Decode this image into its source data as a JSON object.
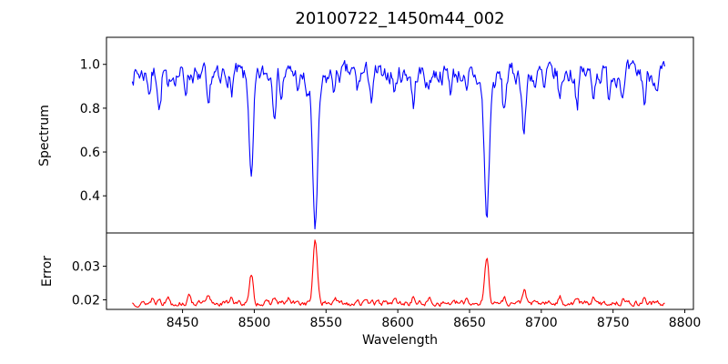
{
  "figure_title": "20100722_1450m44_002",
  "colors": {
    "spectrum_line": "#0000ff",
    "error_line": "#ff0000",
    "axis": "#000000",
    "background": "#ffffff"
  },
  "chart_data": {
    "type": "line",
    "title": "20100722_1450m44_002",
    "xlabel": "Wavelength",
    "xlim": [
      8397,
      8806
    ],
    "x_ticks": [
      {
        "value": 8450,
        "label": "8450"
      },
      {
        "value": 8500,
        "label": "8500"
      },
      {
        "value": 8550,
        "label": "8550"
      },
      {
        "value": 8600,
        "label": "8600"
      },
      {
        "value": 8650,
        "label": "8650"
      },
      {
        "value": 8700,
        "label": "8700"
      },
      {
        "value": 8750,
        "label": "8750"
      },
      {
        "value": 8800,
        "label": "8800"
      }
    ],
    "grid": false,
    "legend": false,
    "panels": [
      {
        "name": "spectrum",
        "ylabel": "Spectrum",
        "ylim": [
          0.2305,
          1.1235
        ],
        "y_ticks": [
          {
            "value": 1.0,
            "label": "1.0"
          },
          {
            "value": 0.8,
            "label": "0.8"
          },
          {
            "value": 0.6,
            "label": "0.6"
          },
          {
            "value": 0.4,
            "label": "0.4"
          }
        ],
        "series": {
          "name": "spectrum",
          "color": "#0000ff",
          "x_start": 8415,
          "x_end": 8786,
          "n_points": 520,
          "continuum": 0.958,
          "noise": {
            "seed": 7,
            "persistence": 0.55,
            "amplitude": 0.075
          },
          "absorption_lines": [
            {
              "center": 8427.0,
              "depth": 0.08,
              "sigma": 0.9
            },
            {
              "center": 8434.0,
              "depth": 0.16,
              "sigma": 1.0
            },
            {
              "center": 8440.0,
              "depth": 0.11,
              "sigma": 0.9
            },
            {
              "center": 8452.0,
              "depth": 0.07,
              "sigma": 0.9
            },
            {
              "center": 8461.0,
              "depth": 0.06,
              "sigma": 0.8
            },
            {
              "center": 8468.0,
              "depth": 0.2,
              "sigma": 1.1
            },
            {
              "center": 8476.0,
              "depth": 0.07,
              "sigma": 0.9
            },
            {
              "center": 8484.0,
              "depth": 0.09,
              "sigma": 0.9
            },
            {
              "center": 8498.0,
              "depth": 0.44,
              "sigma": 1.3
            },
            {
              "center": 8498.0,
              "depth": 0.06,
              "sigma": 3.5
            },
            {
              "center": 8514.0,
              "depth": 0.15,
              "sigma": 1.0
            },
            {
              "center": 8519.0,
              "depth": 0.1,
              "sigma": 0.9
            },
            {
              "center": 8531.0,
              "depth": 0.07,
              "sigma": 0.9
            },
            {
              "center": 8537.0,
              "depth": 0.06,
              "sigma": 0.8
            },
            {
              "center": 8542.5,
              "depth": 0.62,
              "sigma": 1.7
            },
            {
              "center": 8542.5,
              "depth": 0.08,
              "sigma": 5.5
            },
            {
              "center": 8556.0,
              "depth": 0.07,
              "sigma": 0.9
            },
            {
              "center": 8572.0,
              "depth": 0.08,
              "sigma": 0.9
            },
            {
              "center": 8582.0,
              "depth": 0.13,
              "sigma": 1.0
            },
            {
              "center": 8590.0,
              "depth": 0.06,
              "sigma": 0.8
            },
            {
              "center": 8598.0,
              "depth": 0.09,
              "sigma": 0.9
            },
            {
              "center": 8611.0,
              "depth": 0.15,
              "sigma": 1.0
            },
            {
              "center": 8621.0,
              "depth": 0.08,
              "sigma": 0.9
            },
            {
              "center": 8637.0,
              "depth": 0.07,
              "sigma": 0.9
            },
            {
              "center": 8648.0,
              "depth": 0.12,
              "sigma": 1.0
            },
            {
              "center": 8662.0,
              "depth": 0.58,
              "sigma": 1.6
            },
            {
              "center": 8662.0,
              "depth": 0.08,
              "sigma": 4.5
            },
            {
              "center": 8674.0,
              "depth": 0.17,
              "sigma": 1.1
            },
            {
              "center": 8688.0,
              "depth": 0.27,
              "sigma": 1.3
            },
            {
              "center": 8696.0,
              "depth": 0.07,
              "sigma": 0.9
            },
            {
              "center": 8702.0,
              "depth": 0.09,
              "sigma": 0.9
            },
            {
              "center": 8713.0,
              "depth": 0.12,
              "sigma": 1.0
            },
            {
              "center": 8725.0,
              "depth": 0.13,
              "sigma": 1.0
            },
            {
              "center": 8736.0,
              "depth": 0.1,
              "sigma": 0.9
            },
            {
              "center": 8747.0,
              "depth": 0.09,
              "sigma": 0.9
            },
            {
              "center": 8757.0,
              "depth": 0.12,
              "sigma": 1.0
            },
            {
              "center": 8772.0,
              "depth": 0.13,
              "sigma": 1.0
            },
            {
              "center": 8781.0,
              "depth": 0.09,
              "sigma": 0.9
            }
          ]
        }
      },
      {
        "name": "error",
        "ylabel": "Error",
        "ylim": [
          0.01715,
          0.0399
        ],
        "y_ticks": [
          {
            "value": 0.03,
            "label": "0.03"
          },
          {
            "value": 0.02,
            "label": "0.02"
          }
        ],
        "series": {
          "name": "error",
          "color": "#ff0000",
          "x_start": 8415,
          "x_end": 8786,
          "n_points": 520,
          "baseline": 0.019,
          "noise": {
            "seed": 13,
            "persistence": 0.5,
            "amplitude": 0.0013
          },
          "emission_peaks": [
            {
              "center": 8429.0,
              "height": 0.0016,
              "sigma": 0.9
            },
            {
              "center": 8434.0,
              "height": 0.0018,
              "sigma": 1.0
            },
            {
              "center": 8440.0,
              "height": 0.0022,
              "sigma": 0.9
            },
            {
              "center": 8455.0,
              "height": 0.0025,
              "sigma": 1.0
            },
            {
              "center": 8468.0,
              "height": 0.0018,
              "sigma": 1.0
            },
            {
              "center": 8484.0,
              "height": 0.0022,
              "sigma": 1.0
            },
            {
              "center": 8498.0,
              "height": 0.0085,
              "sigma": 1.2
            },
            {
              "center": 8514.0,
              "height": 0.0018,
              "sigma": 0.9
            },
            {
              "center": 8524.0,
              "height": 0.0014,
              "sigma": 0.9
            },
            {
              "center": 8542.5,
              "height": 0.0185,
              "sigma": 1.5
            },
            {
              "center": 8556.0,
              "height": 0.0016,
              "sigma": 0.9
            },
            {
              "center": 8572.0,
              "height": 0.0014,
              "sigma": 0.9
            },
            {
              "center": 8582.0,
              "height": 0.0016,
              "sigma": 0.9
            },
            {
              "center": 8598.0,
              "height": 0.0013,
              "sigma": 0.9
            },
            {
              "center": 8611.0,
              "height": 0.0018,
              "sigma": 0.9
            },
            {
              "center": 8622.0,
              "height": 0.0013,
              "sigma": 0.9
            },
            {
              "center": 8648.0,
              "height": 0.0016,
              "sigma": 0.9
            },
            {
              "center": 8662.0,
              "height": 0.0135,
              "sigma": 1.4
            },
            {
              "center": 8674.0,
              "height": 0.0017,
              "sigma": 0.9
            },
            {
              "center": 8688.0,
              "height": 0.0042,
              "sigma": 1.1
            },
            {
              "center": 8713.0,
              "height": 0.0018,
              "sigma": 0.9
            },
            {
              "center": 8725.0,
              "height": 0.0016,
              "sigma": 0.9
            },
            {
              "center": 8736.0,
              "height": 0.0014,
              "sigma": 0.9
            },
            {
              "center": 8757.0,
              "height": 0.0017,
              "sigma": 0.9
            },
            {
              "center": 8772.0,
              "height": 0.0018,
              "sigma": 0.9
            }
          ]
        }
      }
    ]
  }
}
